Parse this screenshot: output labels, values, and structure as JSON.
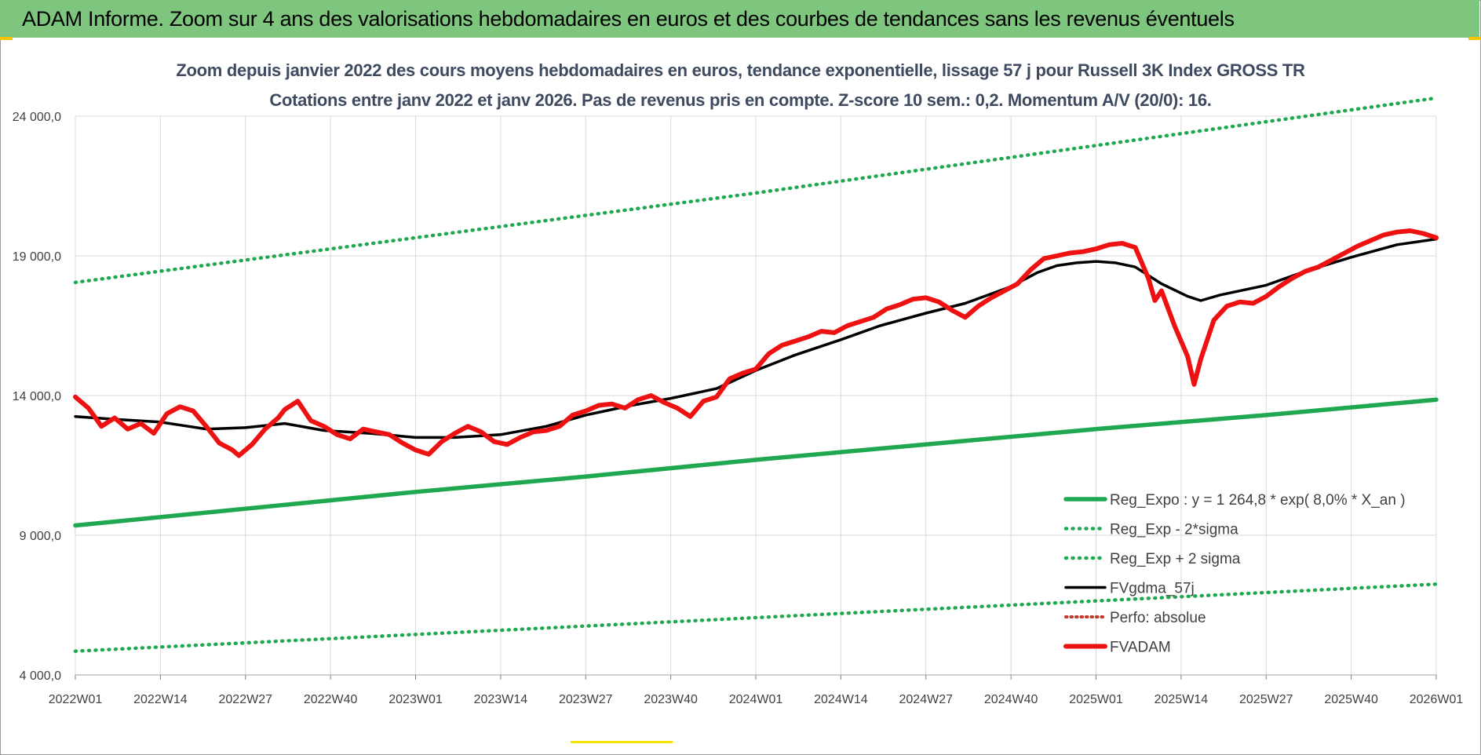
{
  "header": {
    "banner_title": "ADAM Informe. Zoom sur 4 ans des valorisations hebdomadaires en euros et des courbes de tendances sans les revenus éventuels"
  },
  "colors": {
    "banner": "#7ec67e",
    "reg_expo": "#1fa84f",
    "bands": "#1fa84f",
    "fvgdma": "#000000",
    "fvadam": "#ee1111",
    "perfo": "#c0392b",
    "grid": "#d9d9d9"
  },
  "chart_data": {
    "type": "line",
    "title": "Zoom depuis janvier 2022 des cours moyens hebdomadaires en euros, tendance exponentielle, lissage 57 j pour Russell 3K Index GROSS TR",
    "subtitle": "Cotations entre janv 2022 et janv 2026. Pas de revenus pris en compte. Z-score 10 sem.: 0,2. Momentum A/V (20/0): 16.",
    "xlabel": "",
    "ylabel": "",
    "ylim": [
      4000,
      25000
    ],
    "xlim": [
      0,
      209
    ],
    "grid": true,
    "legend_position": "bottom-right",
    "y_ticks": [
      {
        "value": 4000,
        "label": "4 000,0"
      },
      {
        "value": 9000,
        "label": "9 000,0"
      },
      {
        "value": 14000,
        "label": "14 000,0"
      },
      {
        "value": 19000,
        "label": "19 000,0"
      },
      {
        "value": 24000,
        "label": "24 000,0"
      }
    ],
    "x_ticks": [
      {
        "week": 0,
        "label": "2022W01"
      },
      {
        "week": 13,
        "label": "2022W14"
      },
      {
        "week": 26,
        "label": "2022W27"
      },
      {
        "week": 39,
        "label": "2022W40"
      },
      {
        "week": 52,
        "label": "2023W01"
      },
      {
        "week": 65,
        "label": "2023W14"
      },
      {
        "week": 78,
        "label": "2023W27"
      },
      {
        "week": 91,
        "label": "2023W40"
      },
      {
        "week": 104,
        "label": "2024W01"
      },
      {
        "week": 117,
        "label": "2024W14"
      },
      {
        "week": 130,
        "label": "2024W27"
      },
      {
        "week": 143,
        "label": "2024W40"
      },
      {
        "week": 156,
        "label": "2025W01"
      },
      {
        "week": 169,
        "label": "2025W14"
      },
      {
        "week": 182,
        "label": "2025W27"
      },
      {
        "week": 195,
        "label": "2025W40"
      },
      {
        "week": 208,
        "label": "2026W01"
      }
    ],
    "series": [
      {
        "name": "Reg_Expo : y = 1 264,8 * exp( 8,0% *  X_an )",
        "style": "solid-thick",
        "x": [
          0,
          26,
          52,
          78,
          104,
          130,
          156,
          182,
          208
        ],
        "y": [
          9350,
          9950,
          10550,
          11100,
          11700,
          12250,
          12800,
          13300,
          13850
        ]
      },
      {
        "name": "Reg_Exp - 2*sigma",
        "style": "dotted",
        "x": [
          0,
          26,
          52,
          78,
          104,
          130,
          156,
          182,
          208
        ],
        "y": [
          4850,
          5150,
          5450,
          5750,
          6050,
          6350,
          6650,
          6950,
          7250
        ]
      },
      {
        "name": "Reg_Exp + 2 sigma",
        "style": "dotted",
        "x": [
          0,
          26,
          52,
          78,
          104,
          130,
          156,
          182,
          208
        ],
        "y": [
          18050,
          18850,
          19650,
          20450,
          21250,
          22100,
          22950,
          23800,
          24650
        ]
      },
      {
        "name": "FVgdma_57j",
        "style": "solid",
        "x": [
          0,
          6,
          13,
          20,
          26,
          32,
          38,
          45,
          52,
          58,
          65,
          72,
          78,
          85,
          91,
          98,
          104,
          110,
          117,
          123,
          130,
          136,
          143,
          147,
          150,
          153,
          156,
          159,
          162,
          166,
          170,
          172,
          175,
          182,
          188,
          195,
          202,
          208
        ],
        "y": [
          13250,
          13150,
          13050,
          12800,
          12850,
          13000,
          12750,
          12650,
          12500,
          12500,
          12600,
          12900,
          13300,
          13650,
          13900,
          14250,
          14900,
          15450,
          16000,
          16500,
          16950,
          17300,
          17900,
          18400,
          18650,
          18750,
          18800,
          18750,
          18600,
          18000,
          17550,
          17400,
          17600,
          17950,
          18450,
          18950,
          19400,
          19600
        ]
      },
      {
        "name": "Perfo: absolue",
        "style": "dotted-thin",
        "x": [],
        "y": []
      },
      {
        "name": "FVADAM",
        "style": "solid-thick",
        "x": [
          0,
          2,
          4,
          6,
          8,
          10,
          12,
          14,
          16,
          18,
          20,
          22,
          24,
          25,
          27,
          29,
          31,
          32,
          34,
          36,
          38,
          40,
          42,
          44,
          46,
          48,
          50,
          52,
          54,
          56,
          58,
          60,
          62,
          64,
          66,
          68,
          70,
          72,
          74,
          76,
          78,
          80,
          82,
          84,
          86,
          88,
          90,
          92,
          94,
          96,
          98,
          100,
          102,
          104,
          106,
          108,
          110,
          112,
          114,
          116,
          118,
          120,
          122,
          124,
          126,
          128,
          130,
          132,
          134,
          136,
          138,
          140,
          142,
          144,
          146,
          148,
          150,
          152,
          154,
          156,
          158,
          160,
          162,
          164,
          165,
          166,
          168,
          170,
          171,
          172,
          174,
          176,
          178,
          180,
          182,
          184,
          186,
          188,
          190,
          192,
          194,
          196,
          198,
          200,
          202,
          204,
          206,
          208
        ],
        "y": [
          13950,
          13550,
          12900,
          13200,
          12800,
          13000,
          12650,
          13350,
          13600,
          13450,
          12900,
          12300,
          12050,
          11850,
          12250,
          12800,
          13200,
          13500,
          13800,
          13100,
          12900,
          12600,
          12450,
          12800,
          12700,
          12600,
          12300,
          12050,
          11900,
          12350,
          12650,
          12900,
          12700,
          12350,
          12250,
          12500,
          12700,
          12750,
          12900,
          13300,
          13450,
          13650,
          13700,
          13550,
          13850,
          14000,
          13750,
          13550,
          13250,
          13800,
          13950,
          14600,
          14800,
          14950,
          15500,
          15800,
          15950,
          16100,
          16300,
          16250,
          16500,
          16650,
          16800,
          17100,
          17250,
          17450,
          17500,
          17350,
          17050,
          16800,
          17200,
          17500,
          17750,
          18000,
          18500,
          18900,
          19000,
          19100,
          19150,
          19250,
          19400,
          19450,
          19300,
          18200,
          17400,
          17750,
          16500,
          15400,
          14400,
          15300,
          16700,
          17200,
          17350,
          17300,
          17550,
          17900,
          18200,
          18450,
          18600,
          18850,
          19100,
          19350,
          19550,
          19750,
          19850,
          19900,
          19800,
          19650
        ]
      }
    ]
  }
}
